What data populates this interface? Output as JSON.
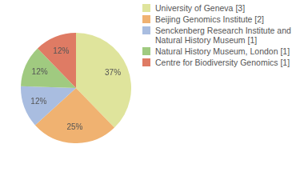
{
  "chart_data": {
    "type": "pie",
    "categories": [
      "University of Geneva [3]",
      "Beijing Genomics Institute [2]",
      "Senckenberg Research Institute and Natural History Museum [1]",
      "Natural History Museum, London [1]",
      "Centre for Biodiversity Genomics [1]"
    ],
    "values": [
      37,
      25,
      12,
      12,
      12
    ],
    "value_labels": [
      "37%",
      "25%",
      "12%",
      "12%",
      "12%"
    ],
    "colors": [
      "#dfe49c",
      "#f0b271",
      "#a9bde0",
      "#a0ca80",
      "#df7b64"
    ],
    "data_labels": true,
    "legend": "right"
  }
}
